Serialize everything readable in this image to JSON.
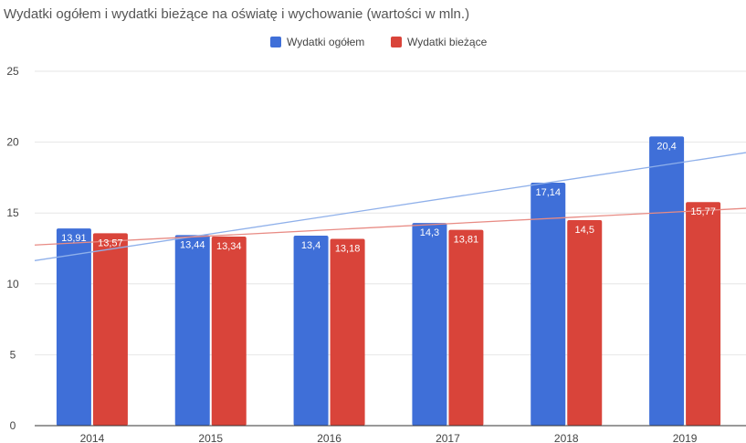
{
  "chart_data": {
    "type": "bar",
    "title": "Wydatki ogółem i wydatki bieżące na oświatę i wychowanie (wartości w mln.)",
    "categories": [
      "2014",
      "2015",
      "2016",
      "2017",
      "2018",
      "2019"
    ],
    "series": [
      {
        "name": "Wydatki ogółem",
        "color": "#3f6fd8",
        "values": [
          13.91,
          13.44,
          13.4,
          14.3,
          17.14,
          20.4
        ],
        "labels": [
          "13,91",
          "13,44",
          "13,4",
          "14,3",
          "17,14",
          "20,4"
        ]
      },
      {
        "name": "Wydatki bieżące",
        "color": "#d9443a",
        "values": [
          13.57,
          13.34,
          13.18,
          13.81,
          14.5,
          15.77
        ],
        "labels": [
          "13,57",
          "13,34",
          "13,18",
          "13,81",
          "14,5",
          "15,77"
        ]
      }
    ],
    "ylim": [
      0,
      25
    ],
    "yticks": [
      "0",
      "5",
      "10",
      "15",
      "20",
      "25"
    ],
    "grid": true,
    "legend": "top-center",
    "trendlines": [
      {
        "series": "Wydatki ogółem",
        "color": "#8fb0ea"
      },
      {
        "series": "Wydatki bieżące",
        "color": "#e88b84"
      }
    ]
  }
}
